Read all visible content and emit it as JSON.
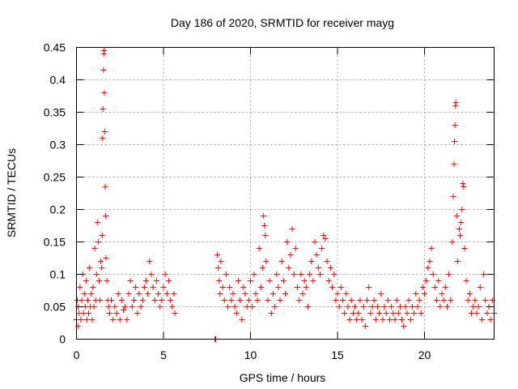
{
  "chart_data": {
    "type": "scatter",
    "title": "Day 186 of 2020, SRMTID for receiver mayg",
    "xlabel": "GPS time / hours",
    "ylabel": "SRMTID / TECUs",
    "xlim": [
      0,
      24
    ],
    "ylim": [
      0,
      0.45
    ],
    "grid": true,
    "marker": "+",
    "color": "#ff0000",
    "xticks": [
      0,
      5,
      10,
      15,
      20
    ],
    "xtick_labels": [
      "0",
      "5",
      "10",
      "15",
      "20"
    ],
    "yticks": [
      0,
      0.05,
      0.1,
      0.15,
      0.2,
      0.25,
      0.3,
      0.35,
      0.4,
      0.45
    ],
    "ytick_labels": [
      "0",
      "0.05",
      "0.1",
      "0.15",
      "0.2",
      "0.25",
      "0.3",
      "0.35",
      "0.4",
      "0.45"
    ],
    "series": [
      {
        "name": "SRMTID",
        "points": [
          [
            0.0,
            0.03
          ],
          [
            0.05,
            0.06
          ],
          [
            0.08,
            0.02
          ],
          [
            0.1,
            0.05
          ],
          [
            0.15,
            0.04
          ],
          [
            0.2,
            0.08
          ],
          [
            0.25,
            0.03
          ],
          [
            0.3,
            0.06
          ],
          [
            0.35,
            0.1
          ],
          [
            0.4,
            0.04
          ],
          [
            0.45,
            0.07
          ],
          [
            0.5,
            0.05
          ],
          [
            0.55,
            0.09
          ],
          [
            0.6,
            0.03
          ],
          [
            0.65,
            0.06
          ],
          [
            0.7,
            0.04
          ],
          [
            0.75,
            0.11
          ],
          [
            0.8,
            0.05
          ],
          [
            0.85,
            0.07
          ],
          [
            0.9,
            0.03
          ],
          [
            0.95,
            0.08
          ],
          [
            1.0,
            0.05
          ],
          [
            1.05,
            0.14
          ],
          [
            1.1,
            0.06
          ],
          [
            1.15,
            0.1
          ],
          [
            1.2,
            0.18
          ],
          [
            1.25,
            0.15
          ],
          [
            1.3,
            0.09
          ],
          [
            1.35,
            0.06
          ],
          [
            1.4,
            0.12
          ],
          [
            1.45,
            0.11
          ],
          [
            1.48,
            0.16
          ],
          [
            1.5,
            0.31
          ],
          [
            1.52,
            0.355
          ],
          [
            1.55,
            0.415
          ],
          [
            1.57,
            0.44
          ],
          [
            1.58,
            0.445
          ],
          [
            1.6,
            0.38
          ],
          [
            1.62,
            0.32
          ],
          [
            1.65,
            0.235
          ],
          [
            1.68,
            0.19
          ],
          [
            1.7,
            0.125
          ],
          [
            1.75,
            0.09
          ],
          [
            1.8,
            0.06
          ],
          [
            1.85,
            0.05
          ],
          [
            1.9,
            0.04
          ],
          [
            2.0,
            0.06
          ],
          [
            2.1,
            0.03
          ],
          [
            2.2,
            0.05
          ],
          [
            2.3,
            0.04
          ],
          [
            2.4,
            0.07
          ],
          [
            2.5,
            0.03
          ],
          [
            2.6,
            0.06
          ],
          [
            2.7,
            0.045
          ],
          [
            2.8,
            0.05
          ],
          [
            2.9,
            0.03
          ],
          [
            3.0,
            0.07
          ],
          [
            3.1,
            0.09
          ],
          [
            3.2,
            0.05
          ],
          [
            3.3,
            0.06
          ],
          [
            3.4,
            0.08
          ],
          [
            3.5,
            0.04
          ],
          [
            3.6,
            0.07
          ],
          [
            3.7,
            0.05
          ],
          [
            3.8,
            0.06
          ],
          [
            3.9,
            0.08
          ],
          [
            4.0,
            0.09
          ],
          [
            4.1,
            0.07
          ],
          [
            4.2,
            0.12
          ],
          [
            4.3,
            0.1
          ],
          [
            4.4,
            0.08
          ],
          [
            4.5,
            0.06
          ],
          [
            4.6,
            0.09
          ],
          [
            4.7,
            0.07
          ],
          [
            4.8,
            0.05
          ],
          [
            4.9,
            0.06
          ],
          [
            5.0,
            0.08
          ],
          [
            5.1,
            0.1
          ],
          [
            5.2,
            0.07
          ],
          [
            5.3,
            0.09
          ],
          [
            5.4,
            0.06
          ],
          [
            5.5,
            0.05
          ],
          [
            5.6,
            0.07
          ],
          [
            5.65,
            0.04
          ],
          [
            7.95,
            0.0
          ],
          [
            8.0,
            0.0
          ],
          [
            8.1,
            0.13
          ],
          [
            8.15,
            0.11
          ],
          [
            8.2,
            0.09
          ],
          [
            8.25,
            0.07
          ],
          [
            8.3,
            0.12
          ],
          [
            8.4,
            0.08
          ],
          [
            8.5,
            0.06
          ],
          [
            8.6,
            0.1
          ],
          [
            8.7,
            0.05
          ],
          [
            8.8,
            0.08
          ],
          [
            8.9,
            0.06
          ],
          [
            9.0,
            0.07
          ],
          [
            9.1,
            0.05
          ],
          [
            9.2,
            0.04
          ],
          [
            9.3,
            0.09
          ],
          [
            9.4,
            0.06
          ],
          [
            9.5,
            0.03
          ],
          [
            9.6,
            0.08
          ],
          [
            9.7,
            0.07
          ],
          [
            9.8,
            0.05
          ],
          [
            9.9,
            0.06
          ],
          [
            10.0,
            0.09
          ],
          [
            10.1,
            0.05
          ],
          [
            10.2,
            0.1
          ],
          [
            10.3,
            0.07
          ],
          [
            10.4,
            0.06
          ],
          [
            10.5,
            0.14
          ],
          [
            10.6,
            0.08
          ],
          [
            10.7,
            0.11
          ],
          [
            10.75,
            0.19
          ],
          [
            10.8,
            0.175
          ],
          [
            10.85,
            0.16
          ],
          [
            10.9,
            0.12
          ],
          [
            11.0,
            0.06
          ],
          [
            11.1,
            0.09
          ],
          [
            11.2,
            0.04
          ],
          [
            11.3,
            0.07
          ],
          [
            11.4,
            0.05
          ],
          [
            11.5,
            0.1
          ],
          [
            11.6,
            0.08
          ],
          [
            11.7,
            0.06
          ],
          [
            11.8,
            0.12
          ],
          [
            11.9,
            0.09
          ],
          [
            12.0,
            0.07
          ],
          [
            12.1,
            0.15
          ],
          [
            12.2,
            0.11
          ],
          [
            12.3,
            0.13
          ],
          [
            12.4,
            0.17
          ],
          [
            12.5,
            0.1
          ],
          [
            12.6,
            0.14
          ],
          [
            12.7,
            0.08
          ],
          [
            12.8,
            0.06
          ],
          [
            12.9,
            0.1
          ],
          [
            13.0,
            0.07
          ],
          [
            13.1,
            0.09
          ],
          [
            13.2,
            0.08
          ],
          [
            13.3,
            0.05
          ],
          [
            13.4,
            0.1
          ],
          [
            13.5,
            0.12
          ],
          [
            13.6,
            0.09
          ],
          [
            13.7,
            0.15
          ],
          [
            13.8,
            0.13
          ],
          [
            13.9,
            0.11
          ],
          [
            14.0,
            0.1
          ],
          [
            14.1,
            0.14
          ],
          [
            14.2,
            0.16
          ],
          [
            14.3,
            0.155
          ],
          [
            14.4,
            0.12
          ],
          [
            14.5,
            0.09
          ],
          [
            14.6,
            0.11
          ],
          [
            14.7,
            0.08
          ],
          [
            14.8,
            0.1
          ],
          [
            14.9,
            0.06
          ],
          [
            15.0,
            0.07
          ],
          [
            15.1,
            0.05
          ],
          [
            15.2,
            0.08
          ],
          [
            15.3,
            0.06
          ],
          [
            15.4,
            0.04
          ],
          [
            15.5,
            0.07
          ],
          [
            15.6,
            0.05
          ],
          [
            15.7,
            0.03
          ],
          [
            15.8,
            0.06
          ],
          [
            15.9,
            0.04
          ],
          [
            16.0,
            0.05
          ],
          [
            16.1,
            0.03
          ],
          [
            16.2,
            0.04
          ],
          [
            16.3,
            0.06
          ],
          [
            16.4,
            0.03
          ],
          [
            16.5,
            0.05
          ],
          [
            16.6,
            0.02
          ],
          [
            16.7,
            0.06
          ],
          [
            16.8,
            0.08
          ],
          [
            16.9,
            0.04
          ],
          [
            17.0,
            0.05
          ],
          [
            17.1,
            0.06
          ],
          [
            17.2,
            0.03
          ],
          [
            17.3,
            0.05
          ],
          [
            17.4,
            0.04
          ],
          [
            17.5,
            0.07
          ],
          [
            17.6,
            0.03
          ],
          [
            17.7,
            0.05
          ],
          [
            17.8,
            0.04
          ],
          [
            17.9,
            0.06
          ],
          [
            18.0,
            0.03
          ],
          [
            18.1,
            0.05
          ],
          [
            18.2,
            0.04
          ],
          [
            18.3,
            0.03
          ],
          [
            18.4,
            0.06
          ],
          [
            18.5,
            0.04
          ],
          [
            18.6,
            0.05
          ],
          [
            18.7,
            0.03
          ],
          [
            18.8,
            0.02
          ],
          [
            18.9,
            0.05
          ],
          [
            19.0,
            0.04
          ],
          [
            19.1,
            0.06
          ],
          [
            19.2,
            0.03
          ],
          [
            19.3,
            0.05
          ],
          [
            19.4,
            0.04
          ],
          [
            19.5,
            0.07
          ],
          [
            19.6,
            0.05
          ],
          [
            19.7,
            0.06
          ],
          [
            19.8,
            0.04
          ],
          [
            19.9,
            0.08
          ],
          [
            20.0,
            0.07
          ],
          [
            20.1,
            0.09
          ],
          [
            20.2,
            0.11
          ],
          [
            20.3,
            0.12
          ],
          [
            20.4,
            0.14
          ],
          [
            20.5,
            0.1
          ],
          [
            20.6,
            0.08
          ],
          [
            20.7,
            0.06
          ],
          [
            20.8,
            0.09
          ],
          [
            20.9,
            0.05
          ],
          [
            21.0,
            0.07
          ],
          [
            21.1,
            0.06
          ],
          [
            21.2,
            0.08
          ],
          [
            21.3,
            0.05
          ],
          [
            21.4,
            0.1
          ],
          [
            21.5,
            0.06
          ],
          [
            21.6,
            0.15
          ],
          [
            21.65,
            0.22
          ],
          [
            21.7,
            0.27
          ],
          [
            21.72,
            0.305
          ],
          [
            21.75,
            0.33
          ],
          [
            21.78,
            0.36
          ],
          [
            21.8,
            0.365
          ],
          [
            21.85,
            0.19
          ],
          [
            21.9,
            0.12
          ],
          [
            22.0,
            0.17
          ],
          [
            22.05,
            0.16
          ],
          [
            22.1,
            0.18
          ],
          [
            22.15,
            0.2
          ],
          [
            22.2,
            0.24
          ],
          [
            22.25,
            0.235
          ],
          [
            22.3,
            0.14
          ],
          [
            22.4,
            0.09
          ],
          [
            22.5,
            0.06
          ],
          [
            22.6,
            0.07
          ],
          [
            22.7,
            0.04
          ],
          [
            22.8,
            0.05
          ],
          [
            22.9,
            0.06
          ],
          [
            23.0,
            0.04
          ],
          [
            23.1,
            0.05
          ],
          [
            23.2,
            0.08
          ],
          [
            23.3,
            0.03
          ],
          [
            23.4,
            0.1
          ],
          [
            23.5,
            0.06
          ],
          [
            23.6,
            0.04
          ],
          [
            23.7,
            0.05
          ],
          [
            23.8,
            0.03
          ],
          [
            23.9,
            0.06
          ],
          [
            24.0,
            0.04
          ]
        ]
      }
    ]
  }
}
